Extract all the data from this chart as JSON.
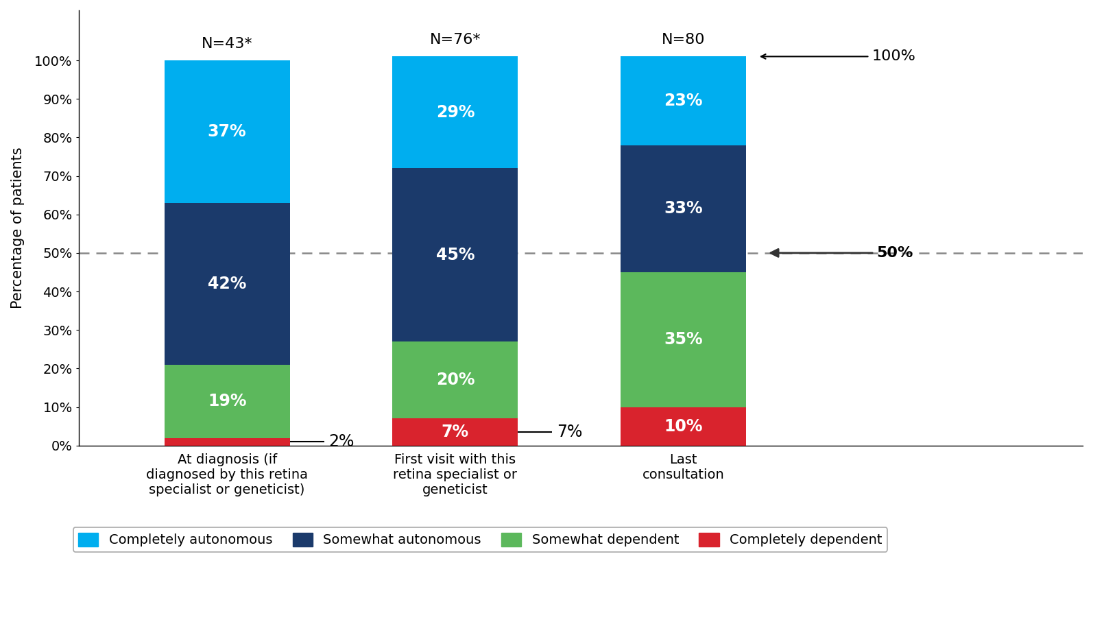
{
  "categories": [
    "At diagnosis (if\ndiagnosed by this retina\nspecialist or geneticist)",
    "First visit with this\nretina specialist or\ngeneticist",
    "Last\nconsultation"
  ],
  "n_labels": [
    "N=43*",
    "N=76*",
    "N=80"
  ],
  "completely_dependent": [
    2,
    7,
    10
  ],
  "somewhat_dependent": [
    19,
    20,
    35
  ],
  "somewhat_autonomous": [
    42,
    45,
    33
  ],
  "completely_autonomous": [
    37,
    29,
    23
  ],
  "colors": {
    "completely_autonomous": "#00AEEF",
    "somewhat_autonomous": "#1B3A6B",
    "somewhat_dependent": "#5CB85C",
    "completely_dependent": "#D9232D"
  },
  "ylabel": "Percentage of patients",
  "bar_width": 0.55,
  "background_color": "#ffffff",
  "legend_labels": [
    "Completely autonomous",
    "Somewhat autonomous",
    "Somewhat dependent",
    "Completely dependent"
  ]
}
